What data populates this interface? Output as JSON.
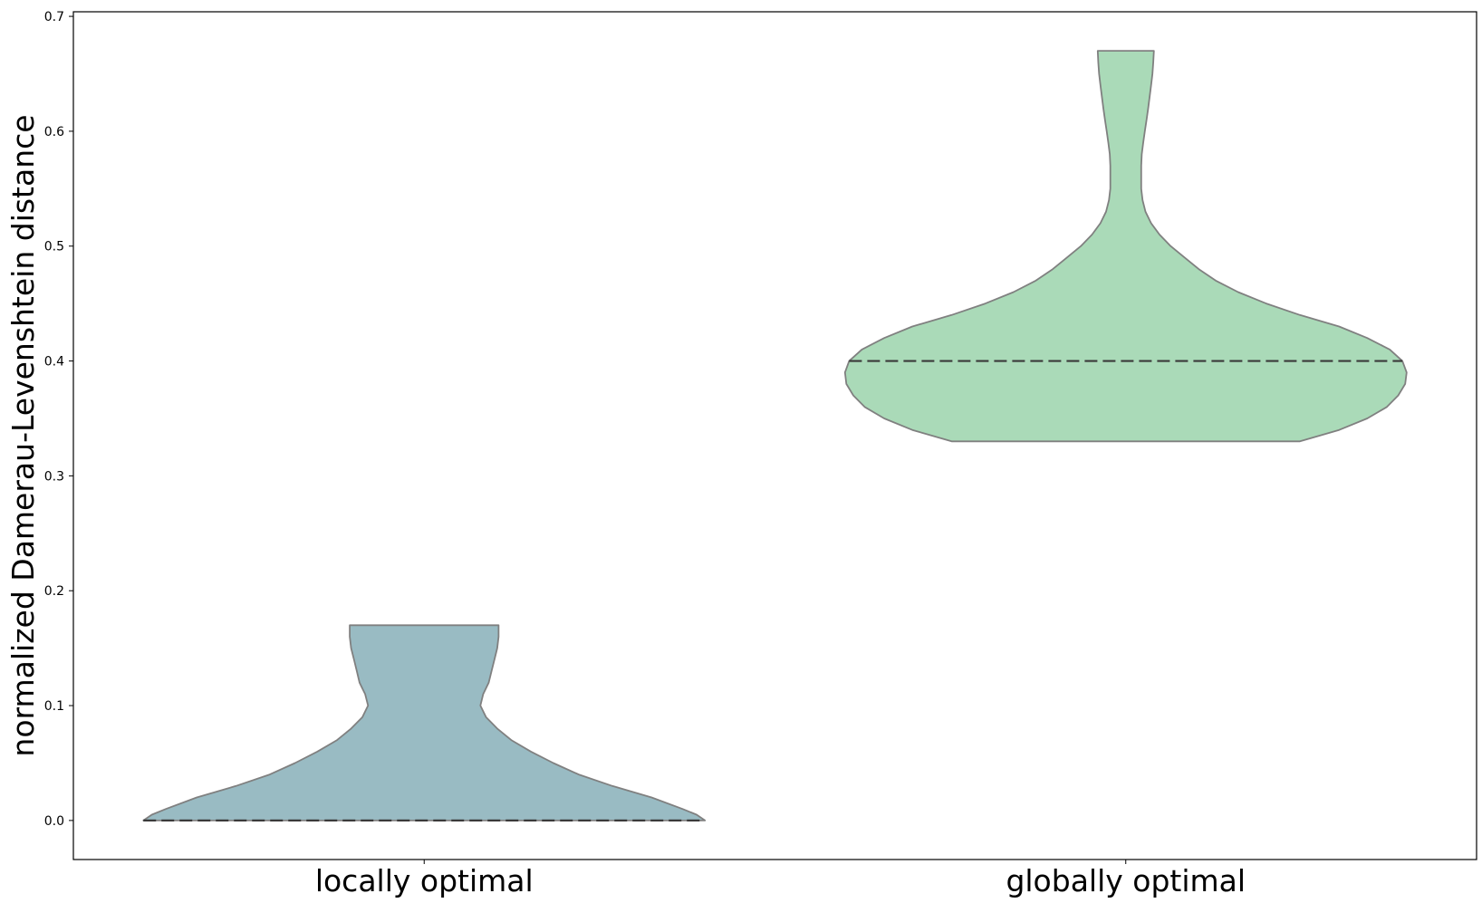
{
  "chart_data": {
    "type": "violin",
    "title": "",
    "xlabel": "",
    "ylabel": "normalized Damerau-Levenshtein distance",
    "ylim": [
      -0.034,
      0.704
    ],
    "yticks": [
      "0.0",
      "0.1",
      "0.2",
      "0.3",
      "0.4",
      "0.5",
      "0.6",
      "0.7"
    ],
    "grid": false,
    "legend": "none",
    "categories": [
      "locally optimal",
      "globally optimal"
    ],
    "series": [
      {
        "category": "locally optimal",
        "color": "#99bbc3",
        "min": 0.0,
        "max": 0.17,
        "median": 0.0,
        "density_profile": [
          [
            0.0,
            1.0
          ],
          [
            0.005,
            0.97
          ],
          [
            0.01,
            0.92
          ],
          [
            0.02,
            0.81
          ],
          [
            0.03,
            0.67
          ],
          [
            0.04,
            0.55
          ],
          [
            0.05,
            0.46
          ],
          [
            0.06,
            0.38
          ],
          [
            0.07,
            0.31
          ],
          [
            0.08,
            0.26
          ],
          [
            0.09,
            0.22
          ],
          [
            0.1,
            0.2
          ],
          [
            0.11,
            0.21
          ],
          [
            0.12,
            0.23
          ],
          [
            0.13,
            0.24
          ],
          [
            0.14,
            0.25
          ],
          [
            0.15,
            0.26
          ],
          [
            0.16,
            0.265
          ],
          [
            0.17,
            0.265
          ]
        ]
      },
      {
        "category": "globally optimal",
        "color": "#aadab8",
        "min": 0.33,
        "max": 0.67,
        "median": 0.4,
        "density_profile": [
          [
            0.33,
            0.62
          ],
          [
            0.34,
            0.76
          ],
          [
            0.35,
            0.86
          ],
          [
            0.36,
            0.93
          ],
          [
            0.37,
            0.97
          ],
          [
            0.38,
            0.995
          ],
          [
            0.39,
            1.0
          ],
          [
            0.4,
            0.985
          ],
          [
            0.41,
            0.94
          ],
          [
            0.42,
            0.86
          ],
          [
            0.43,
            0.76
          ],
          [
            0.44,
            0.62
          ],
          [
            0.45,
            0.5
          ],
          [
            0.46,
            0.4
          ],
          [
            0.47,
            0.32
          ],
          [
            0.48,
            0.26
          ],
          [
            0.49,
            0.21
          ],
          [
            0.5,
            0.16
          ],
          [
            0.51,
            0.12
          ],
          [
            0.52,
            0.09
          ],
          [
            0.53,
            0.07
          ],
          [
            0.54,
            0.06
          ],
          [
            0.55,
            0.055
          ],
          [
            0.56,
            0.055
          ],
          [
            0.57,
            0.055
          ],
          [
            0.58,
            0.057
          ],
          [
            0.59,
            0.062
          ],
          [
            0.6,
            0.068
          ],
          [
            0.61,
            0.074
          ],
          [
            0.62,
            0.08
          ],
          [
            0.63,
            0.085
          ],
          [
            0.64,
            0.09
          ],
          [
            0.65,
            0.095
          ],
          [
            0.66,
            0.098
          ],
          [
            0.67,
            0.1
          ]
        ]
      }
    ]
  }
}
